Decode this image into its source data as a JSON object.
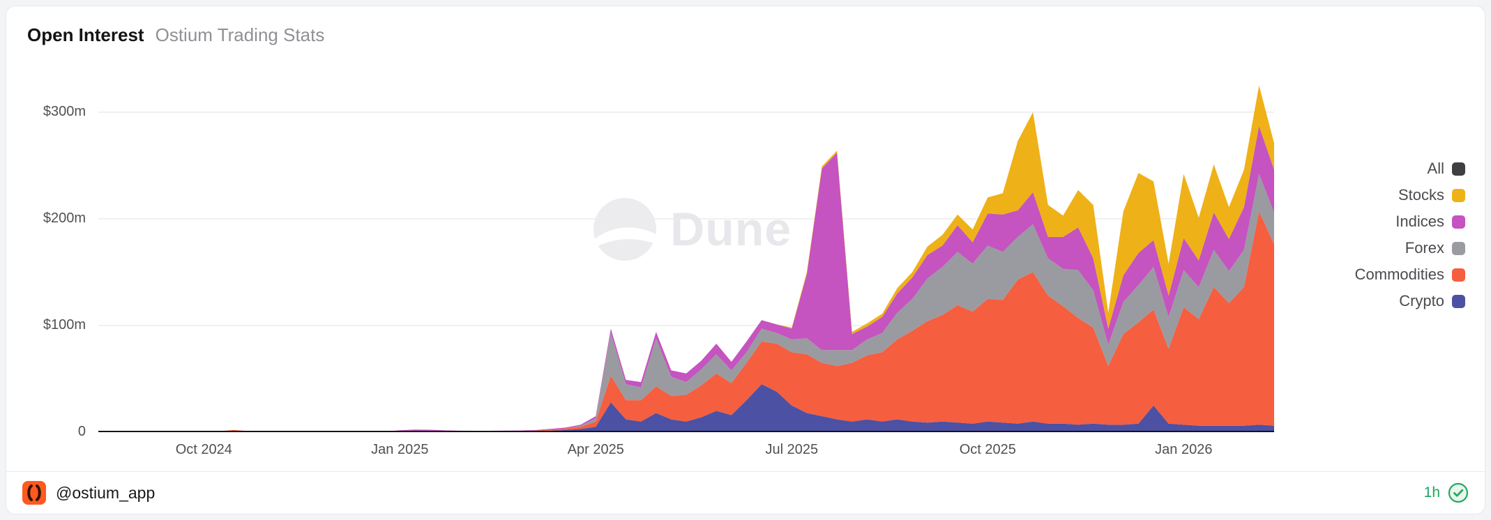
{
  "header": {
    "title": "Open Interest",
    "subtitle": "Ostium Trading Stats"
  },
  "watermark": {
    "label": "Dune"
  },
  "footer": {
    "handle": "@ostium_app",
    "refresh_age": "1h"
  },
  "colors": {
    "all": "#3f3f42",
    "stocks": "#efb118",
    "indices": "#c553c0",
    "forex": "#9a9ba0",
    "commodities": "#f55e3f",
    "crypto": "#4d51a3",
    "grid": "#ebebed",
    "baseline": "#141414",
    "badge_green": "#27a85f",
    "logo_orange": "#ff5a1f"
  },
  "chart_data": {
    "type": "area",
    "stacked": true,
    "title": "Open Interest",
    "xlabel": "",
    "ylabel": "",
    "grid": "horizontal",
    "legend_position": "right",
    "x_start": "2024-08-15",
    "x_interval": "weekly",
    "n_points": 79,
    "ylim": [
      0,
      345
    ],
    "y_ticks": [
      {
        "value": 0,
        "label": "0"
      },
      {
        "value": 100,
        "label": "$100m"
      },
      {
        "value": 200,
        "label": "$200m"
      },
      {
        "value": 300,
        "label": "$300m"
      }
    ],
    "x_ticks": [
      {
        "index": 7,
        "label": "Oct 2024"
      },
      {
        "index": 20,
        "label": "Jan 2025"
      },
      {
        "index": 33,
        "label": "Apr 2025"
      },
      {
        "index": 46,
        "label": "Jul 2025"
      },
      {
        "index": 59,
        "label": "Oct 2025"
      },
      {
        "index": 72,
        "label": "Jan 2026"
      }
    ],
    "legend": [
      {
        "name": "All",
        "color": "#3f3f42"
      },
      {
        "name": "Stocks",
        "color": "#efb118"
      },
      {
        "name": "Indices",
        "color": "#c553c0"
      },
      {
        "name": "Forex",
        "color": "#9a9ba0"
      },
      {
        "name": "Commodities",
        "color": "#f55e3f"
      },
      {
        "name": "Crypto",
        "color": "#4d51a3"
      }
    ],
    "series": [
      {
        "name": "Crypto",
        "color": "#4d51a3",
        "values": [
          0,
          0,
          0,
          0.2,
          0.2,
          0.3,
          0.3,
          0.3,
          0.5,
          0.8,
          0.5,
          0.4,
          0.4,
          0.4,
          0.3,
          0.3,
          0.3,
          0.3,
          0.3,
          0.4,
          0.5,
          0.6,
          0.8,
          0.6,
          0.5,
          0.5,
          0.5,
          0.6,
          0.8,
          1,
          1.5,
          2,
          3,
          5,
          28,
          12,
          10,
          18,
          12,
          10,
          14,
          20,
          16,
          30,
          45,
          38,
          25,
          18,
          15,
          12,
          10,
          12,
          10,
          12,
          10,
          9,
          10,
          9,
          8,
          10,
          9,
          8,
          10,
          8,
          8,
          7,
          8,
          7,
          7,
          8,
          25,
          8,
          7,
          6,
          6,
          6,
          6,
          7,
          6
        ]
      },
      {
        "name": "Commodities",
        "color": "#f55e3f",
        "values": [
          0,
          0,
          0,
          0,
          0,
          0,
          0,
          0,
          0.5,
          1.2,
          0.5,
          0.2,
          0.2,
          0.2,
          0.2,
          0.2,
          0.2,
          0.2,
          0.2,
          0.2,
          0.3,
          0.3,
          0.3,
          0.3,
          0.3,
          0.3,
          0.3,
          0.3,
          0.3,
          0.5,
          1,
          1.5,
          2,
          5,
          25,
          18,
          20,
          25,
          22,
          25,
          30,
          35,
          30,
          35,
          40,
          45,
          50,
          55,
          50,
          50,
          55,
          60,
          65,
          75,
          85,
          95,
          100,
          110,
          105,
          115,
          115,
          135,
          140,
          120,
          110,
          100,
          90,
          55,
          85,
          95,
          90,
          70,
          110,
          100,
          130,
          115,
          130,
          200,
          170
        ]
      },
      {
        "name": "Forex",
        "color": "#9a9ba0",
        "values": [
          0,
          0,
          0,
          0,
          0,
          0,
          0,
          0,
          0,
          0,
          0,
          0,
          0,
          0,
          0,
          0,
          0,
          0,
          0,
          0,
          0,
          0,
          0,
          0,
          0,
          0,
          0,
          0,
          0,
          0,
          0,
          0,
          1,
          3,
          40,
          15,
          12,
          45,
          18,
          12,
          15,
          18,
          12,
          10,
          12,
          10,
          12,
          15,
          12,
          15,
          12,
          15,
          18,
          25,
          30,
          40,
          45,
          50,
          45,
          50,
          45,
          40,
          45,
          35,
          35,
          45,
          35,
          20,
          30,
          35,
          40,
          30,
          35,
          30,
          35,
          30,
          35,
          35,
          30
        ]
      },
      {
        "name": "Indices",
        "color": "#c553c0",
        "values": [
          0,
          0,
          0,
          0,
          0,
          0,
          0,
          0,
          0,
          0,
          0,
          0,
          0,
          0,
          0,
          0,
          0,
          0,
          0,
          0,
          1,
          1.5,
          1.2,
          0.8,
          0.6,
          0.5,
          0.5,
          0.6,
          0.5,
          0.5,
          0.6,
          0.8,
          1,
          2,
          4,
          4,
          5,
          6,
          6,
          8,
          8,
          10,
          8,
          10,
          8,
          8,
          10,
          60,
          170,
          185,
          15,
          12,
          15,
          18,
          20,
          22,
          20,
          25,
          20,
          30,
          35,
          25,
          30,
          20,
          30,
          40,
          30,
          15,
          25,
          30,
          25,
          20,
          30,
          25,
          35,
          30,
          40,
          45,
          40
        ]
      },
      {
        "name": "Stocks",
        "color": "#efb118",
        "values": [
          0,
          0,
          0,
          0,
          0,
          0,
          0,
          0,
          0,
          0,
          0,
          0,
          0,
          0,
          0,
          0,
          0,
          0,
          0,
          0,
          0,
          0,
          0,
          0,
          0,
          0,
          0,
          0,
          0,
          0,
          0,
          0,
          0,
          0,
          0,
          0,
          0,
          0,
          0,
          0,
          0,
          0,
          0,
          0,
          0,
          0,
          1,
          2,
          2,
          2,
          2,
          3,
          3,
          5,
          5,
          8,
          10,
          10,
          12,
          15,
          20,
          65,
          75,
          30,
          20,
          35,
          50,
          15,
          60,
          75,
          55,
          30,
          60,
          40,
          45,
          30,
          35,
          38,
          25
        ]
      }
    ]
  }
}
